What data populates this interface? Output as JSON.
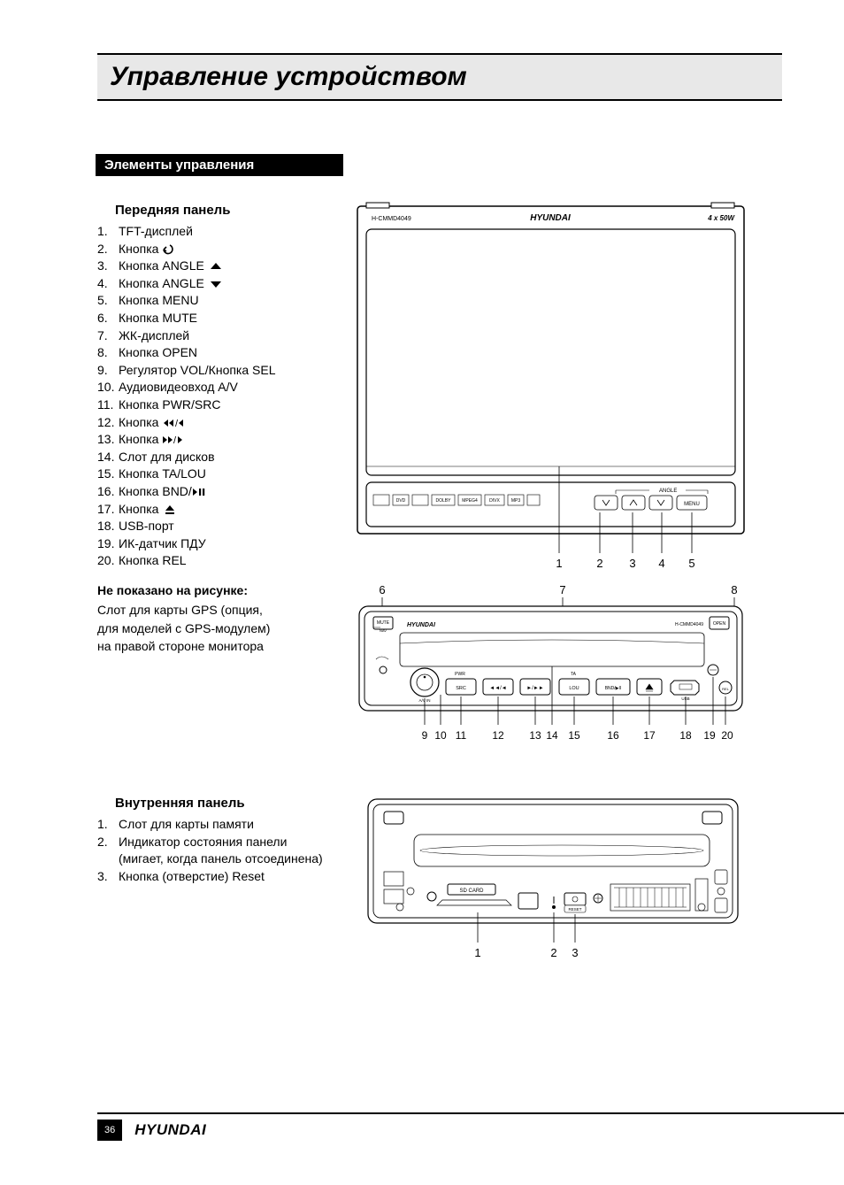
{
  "title": "Управление устройством",
  "section_heading": "Элементы управления",
  "front_panel": {
    "heading": "Передняя панель",
    "items": [
      {
        "n": "1.",
        "t": "TFT-дисплей",
        "icon": null
      },
      {
        "n": "2.",
        "t": "Кнопка ",
        "icon": "return"
      },
      {
        "n": "3.",
        "t": "Кнопка ANGLE ",
        "icon": "up"
      },
      {
        "n": "4.",
        "t": "Кнопка ANGLE ",
        "icon": "down"
      },
      {
        "n": "5.",
        "t": "Кнопка MENU",
        "icon": null
      },
      {
        "n": "6.",
        "t": "Кнопка MUTE",
        "icon": null
      },
      {
        "n": "7.",
        "t": "ЖК-дисплей",
        "icon": null
      },
      {
        "n": "8.",
        "t": "Кнопка OPEN",
        "icon": null
      },
      {
        "n": "9.",
        "t": "Регулятор VOL/Кнопка SEL",
        "icon": null
      },
      {
        "n": "10.",
        "t": "Аудиовидеовход A/V",
        "icon": null
      },
      {
        "n": "11.",
        "t": "Кнопка PWR/SRC",
        "icon": null
      },
      {
        "n": "12.",
        "t": "Кнопка ",
        "icon": "rew"
      },
      {
        "n": "13.",
        "t": "Кнопка ",
        "icon": "ffwd"
      },
      {
        "n": "14.",
        "t": "Слот для дисков",
        "icon": null
      },
      {
        "n": "15.",
        "t": "Кнопка TA/LOU",
        "icon": null
      },
      {
        "n": "16.",
        "t": "Кнопка BND/",
        "icon": "playpause"
      },
      {
        "n": "17.",
        "t": "Кнопка ",
        "icon": "eject"
      },
      {
        "n": "18.",
        "t": "USB-порт",
        "icon": null
      },
      {
        "n": "19.",
        "t": "ИК-датчик ПДУ",
        "icon": null
      },
      {
        "n": "20.",
        "t": "Кнопка REL",
        "icon": null
      }
    ]
  },
  "not_shown": {
    "heading": "Не показано на рисунке:",
    "lines": [
      "Слот для карты GPS (опция,",
      "для моделей с GPS-модулем)",
      "на правой стороне монитора"
    ]
  },
  "inner_panel": {
    "heading": "Внутренняя панель",
    "items": [
      {
        "n": "1.",
        "t": "Слот для карты памяти"
      },
      {
        "n": "2.",
        "t": "Индикатор состояния панели"
      },
      {
        "n": "",
        "t": "(мигает, когда панель отсоединена)"
      },
      {
        "n": "3.",
        "t": "Кнопка (отверстие) Reset"
      }
    ]
  },
  "figures": {
    "top": {
      "brand": "HYUNDAI",
      "model": "H-CMMD4049",
      "power": "4 x 50W",
      "angle_label": "ANGLE",
      "btn_menu": "MENU",
      "callouts": [
        "1",
        "2",
        "3",
        "4",
        "5"
      ],
      "badges": [
        "DVD",
        "DOLBY",
        "MPEG4",
        "DIVX",
        "MP3",
        "WMA"
      ]
    },
    "mid": {
      "top_callouts": [
        "6",
        "7",
        "8"
      ],
      "bottom_callouts": [
        "9",
        "10",
        "11",
        "12",
        "13",
        "14",
        "15",
        "16",
        "17",
        "18",
        "19",
        "20"
      ],
      "labels": {
        "mute": "MUTE",
        "nav": "NAV",
        "brand": "HYUNDAI",
        "model": "H-CMMD4049",
        "open": "OPEN",
        "pwr": "PWR",
        "src": "SRC",
        "avin": "A/V IN",
        "ta": "TA",
        "lou": "LOU",
        "bnd": "BND/▶II",
        "usb": "USB",
        "rel": "REL"
      }
    },
    "inner": {
      "sd": "SD CARD",
      "reset": "RESET",
      "callouts": [
        "1",
        "2",
        "3"
      ]
    }
  },
  "footer": {
    "page": "36",
    "brand": "HYUNDAI"
  },
  "colors": {
    "black": "#000000",
    "grey_bar": "#e8e8e8"
  }
}
